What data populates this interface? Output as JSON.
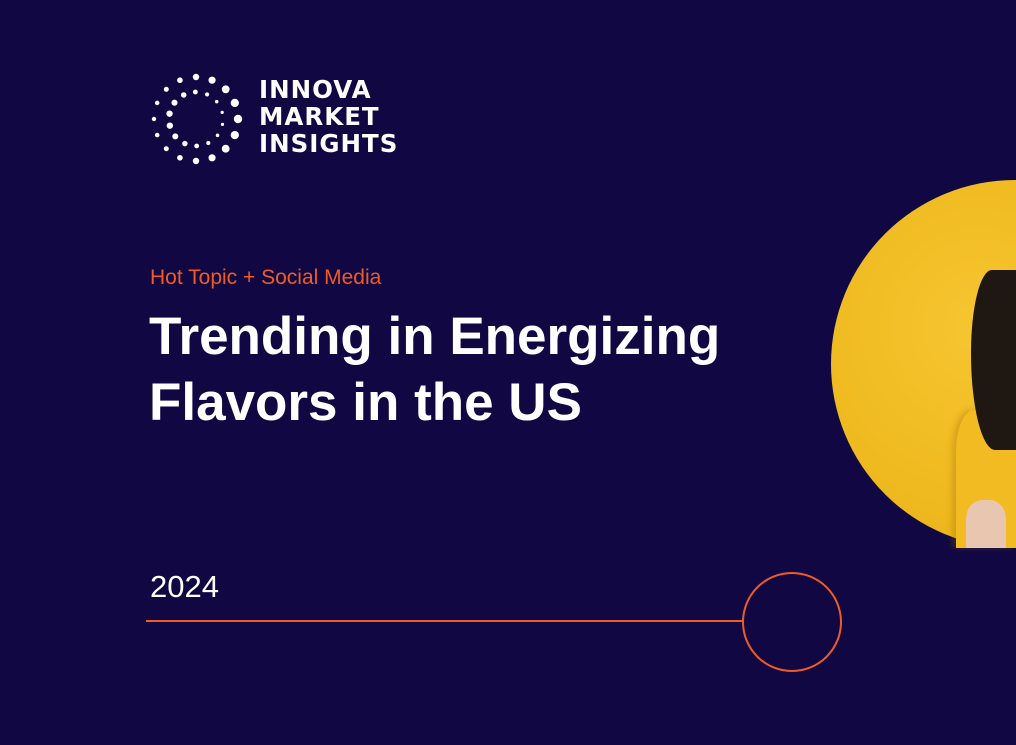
{
  "logo": {
    "lines": [
      "INNOVA",
      "MARKET",
      "INSIGHTS"
    ]
  },
  "slide": {
    "kicker": "Hot Topic + Social Media",
    "title_lines": [
      "Trending in Energizing",
      "Flavors in the US"
    ],
    "year": "2024"
  },
  "colors": {
    "background": "#110843",
    "accent": "#f05a28",
    "photo_background": "#f3bf27"
  }
}
